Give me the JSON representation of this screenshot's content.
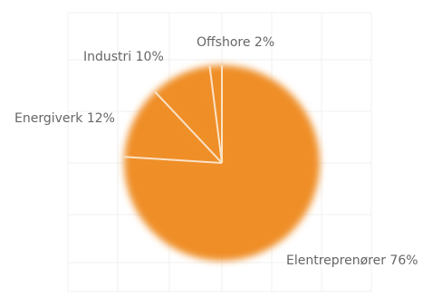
{
  "chart_data": {
    "type": "pie",
    "slices": [
      {
        "label": "Elentreprenører",
        "value": 76,
        "display": "Elentreprenører 76%",
        "color": "#ef8e27"
      },
      {
        "label": "Energiverk",
        "value": 12,
        "display": "Energiverk 12%",
        "color": "#ef8e27"
      },
      {
        "label": "Industri",
        "value": 10,
        "display": "Industri 10%",
        "color": "#ef8e27"
      },
      {
        "label": "Offshore",
        "value": 2,
        "display": "Offshore 2%",
        "color": "#ef8e27"
      }
    ],
    "separator_color": "#fbe3c6",
    "grid": true,
    "legend": "none",
    "label_color": "#666666"
  }
}
